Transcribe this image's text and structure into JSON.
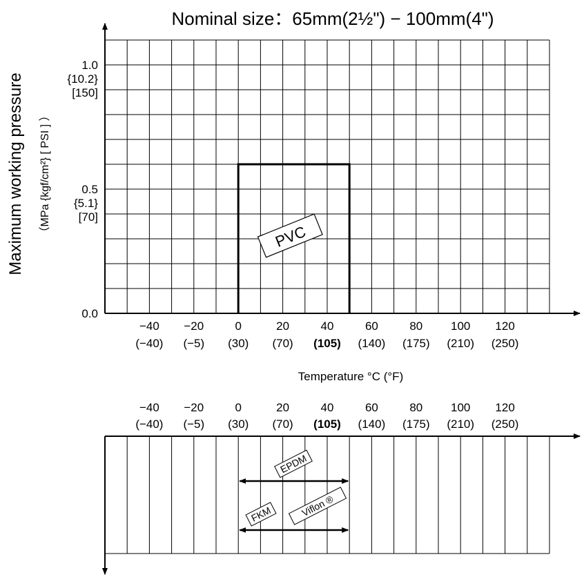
{
  "chart_data": [
    {
      "type": "area",
      "title": "Nominal size：65mm(2½\") − 100mm(4\")",
      "ylabel": "Maximum working pressure",
      "ylabel_units": "（MPa {kgf/cm²} [ PSI ] ）",
      "xlabel": "Temperature °C (°F)",
      "xlim": [
        -60,
        140
      ],
      "ylim": [
        0.0,
        1.1
      ],
      "grid": true,
      "y_ticks": [
        {
          "value": 1.0,
          "lines": [
            "1.0",
            "{10.2}",
            "[150]"
          ]
        },
        {
          "value": 0.5,
          "lines": [
            "0.5",
            "{5.1}",
            "[70]"
          ]
        },
        {
          "value": 0.0,
          "lines": [
            "0.0"
          ]
        }
      ],
      "x_ticks": [
        {
          "c": "−40",
          "f": "(−40)",
          "value": -40
        },
        {
          "c": "−20",
          "f": "(−5)",
          "value": -20
        },
        {
          "c": "0",
          "f": "(30)",
          "value": 0
        },
        {
          "c": "20",
          "f": "(70)",
          "value": 20
        },
        {
          "c": "40",
          "f": "(105)",
          "value": 40,
          "bold": true
        },
        {
          "c": "60",
          "f": "(140)",
          "value": 60
        },
        {
          "c": "80",
          "f": "(175)",
          "value": 80
        },
        {
          "c": "100",
          "f": "(210)",
          "value": 100
        },
        {
          "c": "120",
          "f": "(250)",
          "value": 120
        }
      ],
      "series": [
        {
          "name": "PVC",
          "x": [
            0,
            0,
            50,
            50
          ],
          "y": [
            0.0,
            0.6,
            0.6,
            0.0
          ]
        }
      ]
    },
    {
      "type": "range",
      "xlim": [
        -60,
        140
      ],
      "grid": true,
      "x_ticks": [
        {
          "c": "−40",
          "f": "(−40)",
          "value": -40
        },
        {
          "c": "−20",
          "f": "(−5)",
          "value": -20
        },
        {
          "c": "0",
          "f": "(30)",
          "value": 0
        },
        {
          "c": "20",
          "f": "(70)",
          "value": 20
        },
        {
          "c": "40",
          "f": "(105)",
          "value": 40,
          "bold": true
        },
        {
          "c": "60",
          "f": "(140)",
          "value": 60
        },
        {
          "c": "80",
          "f": "(175)",
          "value": 80
        },
        {
          "c": "100",
          "f": "(210)",
          "value": 100
        },
        {
          "c": "120",
          "f": "(250)",
          "value": 120
        }
      ],
      "ranges": [
        {
          "labels": [
            "EPDM"
          ],
          "from": 0,
          "to": 50
        },
        {
          "labels": [
            "FKM",
            "Viflon ®"
          ],
          "from": 0,
          "to": 50
        }
      ]
    }
  ]
}
